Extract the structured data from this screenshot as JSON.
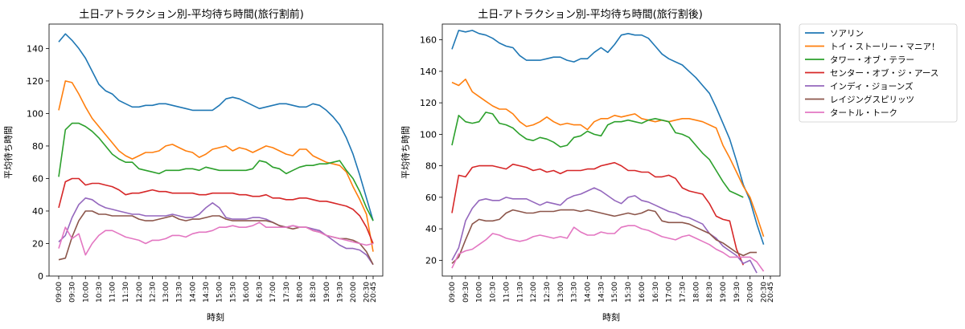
{
  "figure": {
    "legend": {
      "placement": "outside-right",
      "entries": [
        "ソアリン",
        "トイ・ストーリー・マニア！",
        "タワー・オブ・テラー",
        "センター・オブ・ジ・アース",
        "インディ・ジョーンズ",
        "レイジングスピリッツ",
        "タートル・トーク"
      ],
      "colors": [
        "#1f77b4",
        "#ff7f0e",
        "#2ca02c",
        "#d62728",
        "#9467bd",
        "#8c564b",
        "#e377c2"
      ]
    }
  },
  "chart_data": [
    {
      "type": "line",
      "title": "土日-アトラクション別-平均待ち時間(旅行割前)",
      "xlabel": "時刻",
      "ylabel": "平均待ち時間",
      "ylim": [
        0,
        155
      ],
      "yticks": [
        0,
        20,
        40,
        60,
        80,
        100,
        120,
        140
      ],
      "grid": false,
      "x": [
        "09:00",
        "09:15",
        "09:30",
        "09:45",
        "10:00",
        "10:15",
        "10:30",
        "10:45",
        "11:00",
        "11:15",
        "11:30",
        "11:45",
        "12:00",
        "12:15",
        "12:30",
        "12:45",
        "13:00",
        "13:15",
        "13:30",
        "13:45",
        "14:00",
        "14:15",
        "14:30",
        "14:45",
        "15:00",
        "15:15",
        "15:30",
        "15:45",
        "16:00",
        "16:15",
        "16:30",
        "16:45",
        "17:00",
        "17:15",
        "17:30",
        "17:45",
        "18:00",
        "18:15",
        "18:30",
        "18:45",
        "19:00",
        "19:15",
        "19:30",
        "19:45",
        "20:00",
        "20:15",
        "20:30",
        "20:45"
      ],
      "xticklabels": [
        "09:00",
        "09:30",
        "10:00",
        "10:30",
        "11:00",
        "11:30",
        "12:00",
        "12:30",
        "13:00",
        "13:30",
        "14:00",
        "14:30",
        "15:00",
        "15:30",
        "16:00",
        "16:30",
        "17:00",
        "17:30",
        "18:00",
        "18:30",
        "19:00",
        "19:30",
        "20:00",
        "20:30",
        "20:45"
      ],
      "series": [
        {
          "name": "ソアリン",
          "values": [
            144,
            149,
            145,
            140,
            134,
            126,
            118,
            114,
            112,
            108,
            106,
            104,
            104,
            105,
            105,
            106,
            106,
            105,
            104,
            103,
            102,
            102,
            102,
            102,
            105,
            109,
            110,
            109,
            107,
            105,
            103,
            104,
            105,
            106,
            106,
            105,
            104,
            104,
            106,
            105,
            102,
            98,
            93,
            85,
            75,
            62,
            48,
            34
          ]
        },
        {
          "name": "トイ・ストーリー・マニア！",
          "values": [
            102,
            120,
            119,
            112,
            104,
            97,
            92,
            87,
            82,
            77,
            74,
            72,
            74,
            76,
            76,
            77,
            80,
            81,
            79,
            77,
            76,
            73,
            75,
            78,
            79,
            80,
            77,
            79,
            78,
            76,
            78,
            80,
            79,
            77,
            75,
            74,
            78,
            78,
            74,
            72,
            70,
            69,
            68,
            64,
            55,
            47,
            38,
            15
          ]
        },
        {
          "name": "タワー・オブ・テラー",
          "values": [
            61,
            90,
            94,
            94,
            92,
            89,
            85,
            80,
            75,
            72,
            70,
            70,
            66,
            65,
            64,
            63,
            65,
            65,
            65,
            66,
            66,
            65,
            67,
            66,
            65,
            65,
            65,
            65,
            65,
            66,
            71,
            70,
            67,
            66,
            63,
            65,
            67,
            68,
            68,
            69,
            69,
            70,
            71,
            65,
            60,
            52,
            42,
            34
          ]
        },
        {
          "name": "センター・オブ・ジ・アース",
          "values": [
            42,
            58,
            60,
            60,
            56,
            57,
            57,
            56,
            55,
            53,
            50,
            51,
            51,
            52,
            53,
            52,
            52,
            51,
            51,
            51,
            51,
            50,
            50,
            51,
            51,
            51,
            51,
            50,
            50,
            49,
            49,
            50,
            48,
            48,
            47,
            47,
            48,
            48,
            47,
            46,
            46,
            45,
            44,
            43,
            41,
            37,
            30,
            20
          ]
        },
        {
          "name": "インディ・ジョーンズ",
          "values": [
            21,
            25,
            36,
            44,
            48,
            47,
            44,
            42,
            41,
            40,
            39,
            38,
            38,
            37,
            37,
            37,
            37,
            38,
            37,
            36,
            36,
            38,
            42,
            45,
            42,
            36,
            35,
            35,
            35,
            36,
            36,
            35,
            33,
            31,
            30,
            31,
            30,
            30,
            29,
            28,
            25,
            22,
            19,
            17,
            17,
            16,
            13,
            7
          ]
        },
        {
          "name": "レイジングスピリッツ",
          "values": [
            10,
            11,
            24,
            34,
            40,
            40,
            38,
            38,
            37,
            37,
            37,
            37,
            35,
            34,
            34,
            35,
            36,
            37,
            35,
            34,
            35,
            35,
            36,
            37,
            37,
            35,
            34,
            34,
            34,
            34,
            34,
            34,
            33,
            31,
            30,
            29,
            30,
            30,
            28,
            27,
            25,
            24,
            23,
            23,
            22,
            20,
            15,
            7
          ]
        },
        {
          "name": "タートル・トーク",
          "values": [
            17,
            30,
            23,
            26,
            13,
            20,
            25,
            28,
            28,
            26,
            24,
            23,
            22,
            20,
            22,
            22,
            23,
            25,
            25,
            24,
            26,
            27,
            27,
            28,
            30,
            30,
            31,
            30,
            30,
            31,
            33,
            30,
            30,
            30,
            30,
            31,
            30,
            30,
            28,
            27,
            25,
            24,
            23,
            22,
            21,
            20,
            19,
            20
          ]
        }
      ]
    },
    {
      "type": "line",
      "title": "土日-アトラクション別-平均待ち時間(旅行割後)",
      "xlabel": "時刻",
      "ylabel": "平均待ち時間",
      "ylim": [
        10,
        170
      ],
      "yticks": [
        20,
        40,
        60,
        80,
        100,
        120,
        140,
        160
      ],
      "grid": false,
      "x": [
        "09:00",
        "09:15",
        "09:30",
        "09:45",
        "10:00",
        "10:15",
        "10:30",
        "10:45",
        "11:00",
        "11:15",
        "11:30",
        "11:45",
        "12:00",
        "12:15",
        "12:30",
        "12:45",
        "13:00",
        "13:15",
        "13:30",
        "13:45",
        "14:00",
        "14:15",
        "14:30",
        "14:45",
        "15:00",
        "15:15",
        "15:30",
        "15:45",
        "16:00",
        "16:15",
        "16:30",
        "16:45",
        "17:00",
        "17:15",
        "17:30",
        "17:45",
        "18:00",
        "18:15",
        "18:30",
        "18:45",
        "19:00",
        "19:15",
        "19:30",
        "19:45",
        "20:00",
        "20:15",
        "20:30",
        "20:45"
      ],
      "xticklabels": [
        "09:00",
        "09:30",
        "10:00",
        "10:30",
        "11:00",
        "11:30",
        "12:00",
        "12:30",
        "13:00",
        "13:30",
        "14:00",
        "14:30",
        "15:00",
        "15:30",
        "16:00",
        "16:30",
        "17:00",
        "17:30",
        "18:00",
        "18:30",
        "19:00",
        "19:30",
        "20:00",
        "20:30",
        "20:45"
      ],
      "series": [
        {
          "name": "ソアリン",
          "values": [
            154,
            166,
            165,
            166,
            164,
            163,
            161,
            158,
            156,
            155,
            150,
            147,
            147,
            147,
            148,
            149,
            149,
            147,
            146,
            148,
            148,
            152,
            155,
            152,
            157,
            163,
            164,
            163,
            163,
            161,
            156,
            151,
            148,
            146,
            144,
            140,
            136,
            131,
            126,
            117,
            107,
            97,
            83,
            68,
            58,
            43,
            30,
            null
          ]
        },
        {
          "name": "トイ・ストーリー・マニア！",
          "values": [
            133,
            131,
            135,
            127,
            124,
            121,
            118,
            116,
            116,
            113,
            108,
            105,
            106,
            108,
            111,
            108,
            106,
            107,
            106,
            106,
            103,
            108,
            110,
            110,
            112,
            111,
            112,
            113,
            110,
            109,
            108,
            109,
            108,
            109,
            110,
            110,
            109,
            108,
            106,
            104,
            93,
            85,
            76,
            67,
            60,
            48,
            35,
            null
          ]
        },
        {
          "name": "タワー・オブ・テラー",
          "values": [
            93,
            112,
            108,
            107,
            108,
            114,
            113,
            107,
            106,
            104,
            100,
            97,
            96,
            98,
            97,
            95,
            92,
            93,
            98,
            99,
            102,
            100,
            99,
            106,
            108,
            108,
            109,
            108,
            107,
            109,
            110,
            109,
            108,
            101,
            100,
            98,
            93,
            88,
            84,
            77,
            70,
            64,
            62,
            60,
            null,
            null,
            null,
            null
          ]
        },
        {
          "name": "センター・オブ・ジ・アース",
          "values": [
            50,
            74,
            73,
            79,
            80,
            80,
            80,
            79,
            78,
            81,
            80,
            79,
            77,
            78,
            76,
            77,
            75,
            77,
            77,
            77,
            78,
            78,
            80,
            81,
            82,
            80,
            77,
            77,
            76,
            76,
            73,
            73,
            74,
            72,
            66,
            64,
            63,
            62,
            56,
            48,
            46,
            45,
            27,
            17,
            null,
            null,
            null,
            null
          ]
        },
        {
          "name": "インディ・ジョーンズ",
          "values": [
            20,
            28,
            45,
            53,
            58,
            59,
            58,
            58,
            60,
            59,
            59,
            59,
            57,
            55,
            57,
            56,
            55,
            59,
            61,
            62,
            64,
            66,
            64,
            61,
            58,
            56,
            60,
            61,
            58,
            57,
            55,
            53,
            51,
            50,
            48,
            47,
            45,
            43,
            37,
            34,
            29,
            26,
            23,
            18,
            20,
            12,
            null,
            null
          ]
        },
        {
          "name": "レイジングスピリッツ",
          "values": [
            18,
            22,
            33,
            43,
            46,
            45,
            45,
            46,
            50,
            52,
            51,
            50,
            50,
            51,
            51,
            51,
            52,
            52,
            52,
            51,
            52,
            51,
            50,
            49,
            48,
            49,
            50,
            49,
            50,
            52,
            51,
            45,
            44,
            44,
            44,
            43,
            41,
            39,
            37,
            33,
            31,
            28,
            25,
            23,
            25,
            25,
            null,
            null
          ]
        },
        {
          "name": "タートル・トーク",
          "values": [
            15,
            24,
            26,
            27,
            30,
            33,
            37,
            36,
            34,
            33,
            32,
            33,
            35,
            36,
            35,
            34,
            35,
            34,
            41,
            38,
            36,
            36,
            38,
            37,
            37,
            41,
            42,
            42,
            40,
            39,
            37,
            35,
            34,
            33,
            35,
            36,
            34,
            32,
            30,
            27,
            25,
            22,
            22,
            22,
            22,
            19,
            13,
            null
          ]
        }
      ]
    }
  ]
}
